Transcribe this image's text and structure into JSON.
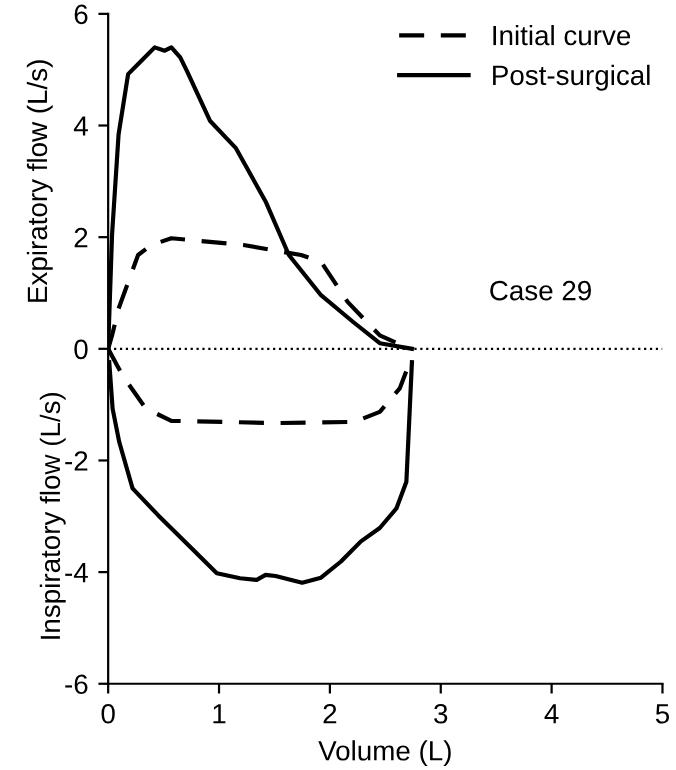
{
  "chart_data": {
    "type": "line",
    "xlabel": "Volume (L)",
    "ylabel": "Expiratory flow (L/s)",
    "annotations": [
      "Case 29",
      "Inspiratory flow (L/s)"
    ],
    "xlim": [
      0,
      5
    ],
    "xticks": [
      0,
      1,
      2,
      3,
      4,
      5
    ],
    "ylim": [
      -6,
      6
    ],
    "yticks": [
      -6,
      -4,
      -2,
      0,
      2,
      4,
      6
    ],
    "grid": false,
    "legend": "top right",
    "marker": "none",
    "ref_lines": [
      {
        "axis": "y",
        "value": 0,
        "label": null,
        "color": "#000000",
        "line_style": "dotted"
      }
    ],
    "series": [
      {
        "name": "Initial curve",
        "color": "#000000",
        "line_style": "dashed",
        "x": [
          0,
          0.035,
          0.094,
          0.27,
          0.39,
          0.57,
          1.22,
          1.74,
          1.92,
          2.16,
          2.45,
          2.72
        ],
        "values": [
          0,
          0.24,
          0.72,
          1.68,
          1.86,
          1.98,
          1.86,
          1.68,
          1.56,
          0.84,
          0.24,
          0
        ]
      },
      {
        "color": "#000000",
        "line_style": "dashed",
        "x": [
          0,
          0.13,
          0.34,
          0.57,
          1.51,
          2.22,
          2.45,
          2.63,
          2.72
        ],
        "values": [
          0,
          -0.48,
          -1.07,
          -1.29,
          -1.33,
          -1.31,
          -1.13,
          -0.71,
          -0.24
        ]
      },
      {
        "name": "Post-surgical",
        "color": "#000000",
        "line_style": "solid",
        "x": [
          0,
          0.035,
          0.094,
          0.18,
          0.3,
          0.42,
          0.51,
          0.57,
          0.65,
          0.71,
          0.92,
          1.15,
          1.42,
          1.63,
          1.92,
          2.21,
          2.45,
          2.74
        ],
        "values": [
          0,
          2.04,
          3.84,
          4.92,
          5.16,
          5.4,
          5.34,
          5.4,
          5.22,
          4.98,
          4.08,
          3.6,
          2.64,
          1.68,
          0.96,
          0.48,
          0.1,
          0
        ]
      },
      {
        "color": "#000000",
        "line_style": "solid",
        "x": [
          0.01,
          0.04,
          0.1,
          0.22,
          0.45,
          0.75,
          0.98,
          1.19,
          1.34,
          1.42,
          1.51,
          1.75,
          1.92,
          2.1,
          2.28,
          2.45,
          2.6,
          2.69,
          2.74
        ],
        "values": [
          -0.24,
          -1.07,
          -1.67,
          -2.5,
          -2.98,
          -3.57,
          -4.02,
          -4.11,
          -4.14,
          -4.05,
          -4.07,
          -4.19,
          -4.1,
          -3.81,
          -3.45,
          -3.21,
          -2.86,
          -2.38,
          -0.24
        ]
      }
    ]
  }
}
